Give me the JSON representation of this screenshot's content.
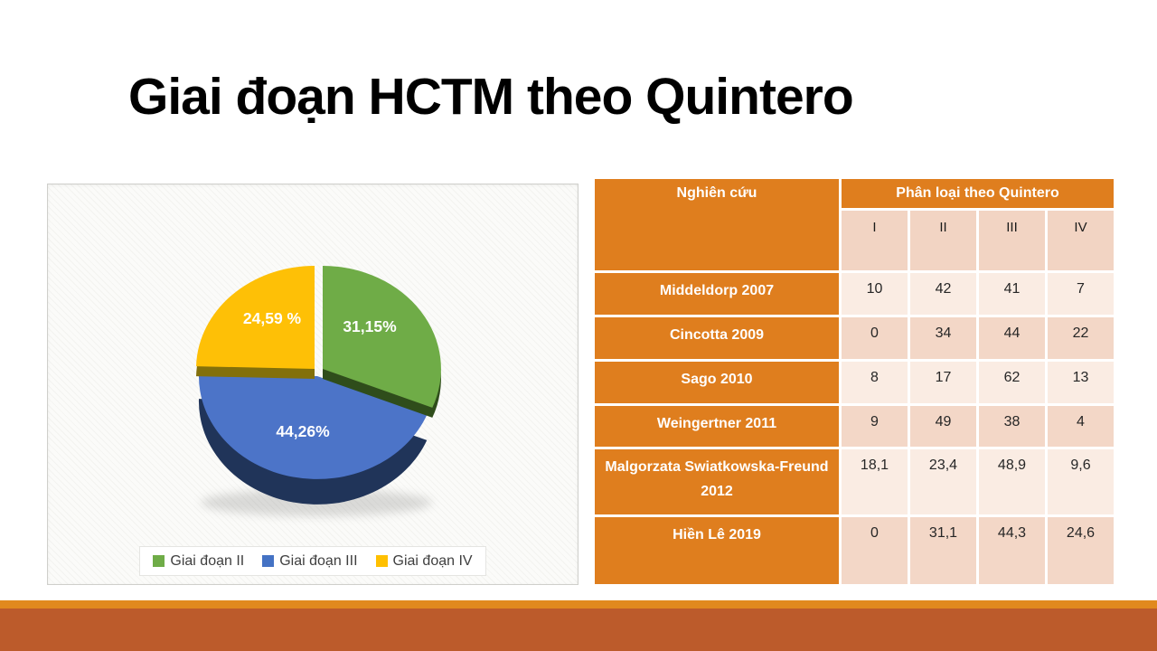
{
  "slide": {
    "title": "Giai đoạn HCTM theo Quintero"
  },
  "colors": {
    "header_orange": "#df7e1e",
    "subheader_bg": "#f2d4c3",
    "row_light": "#faece3",
    "row_dark": "#f3d7c7",
    "bottom_strip": "#e1891e",
    "bottom_band": "#bc5b2b",
    "panel_border": "#cfcfcb",
    "legend_text": "#3f3f3f"
  },
  "chart_data": [
    {
      "type": "pie",
      "style": "3d-exploded",
      "legend_position": "bottom",
      "slices": [
        {
          "label": "Giai đoạn II",
          "value": 31.15,
          "display": "31,15%",
          "color": "#6fac47",
          "side_color": "#2f4d1b",
          "legend_color": "#6fac47"
        },
        {
          "label": "Giai đoạn III",
          "value": 44.26,
          "display": "44,26%",
          "color": "#4c74c8",
          "side_color": "#203459",
          "legend_color": "#4472c4"
        },
        {
          "label": "Giai đoạn IV",
          "value": 24.59,
          "display": "24,59 %",
          "color": "#fec006",
          "side_color": "#83700b",
          "legend_color": "#ffc000"
        }
      ]
    },
    {
      "type": "table",
      "header_col": "Nghiên cứu",
      "group_header": "Phân loại theo Quintero",
      "sub_headers": [
        "I",
        "II",
        "III",
        "IV"
      ],
      "rows": [
        {
          "label": "Middeldorp 2007",
          "values": [
            "10",
            "42",
            "41",
            "7"
          ]
        },
        {
          "label": "Cincotta 2009",
          "values": [
            "0",
            "34",
            "44",
            "22"
          ]
        },
        {
          "label": "Sago 2010",
          "values": [
            "8",
            "17",
            "62",
            "13"
          ]
        },
        {
          "label": "Weingertner 2011",
          "values": [
            "9",
            "49",
            "38",
            "4"
          ]
        },
        {
          "label": "Malgorzata Swiatkowska-Freund 2012",
          "values": [
            "18,1",
            "23,4",
            "48,9",
            "9,6"
          ]
        },
        {
          "label": "Hiền Lê 2019",
          "values": [
            "0",
            "31,1",
            "44,3",
            "24,6"
          ]
        }
      ]
    }
  ]
}
